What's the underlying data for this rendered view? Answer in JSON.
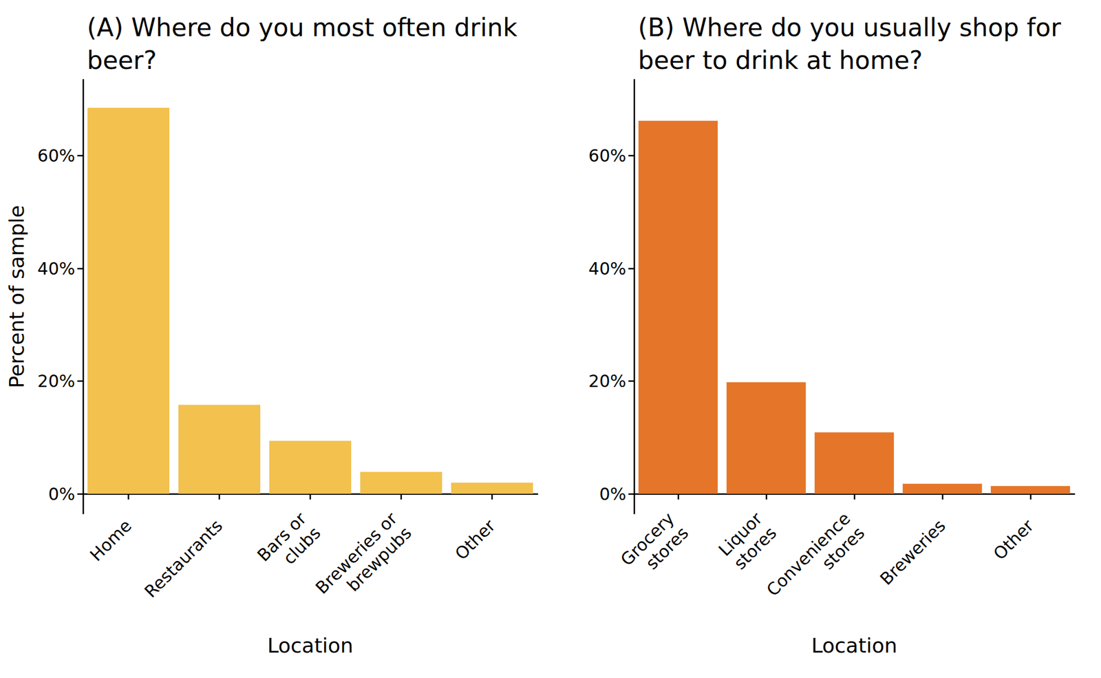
{
  "chart_data": [
    {
      "type": "bar",
      "title": "(A) Where do you most often drink beer?",
      "xlabel": "Location",
      "ylabel": "Percent of sample",
      "categories": [
        "Home",
        "Restaurants",
        "Bars or\nclubs",
        "Breweries or\nbrewpubs",
        "Other"
      ],
      "values": [
        68.5,
        15.8,
        9.4,
        3.9,
        2.0
      ],
      "color": "#f2c14e",
      "ylim": [
        -3.5,
        73.5
      ],
      "yticks": [
        {
          "value": 0,
          "label": "0%"
        },
        {
          "value": 20,
          "label": "20%"
        },
        {
          "value": 40,
          "label": "40%"
        },
        {
          "value": 60,
          "label": "60%"
        }
      ],
      "grid": false
    },
    {
      "type": "bar",
      "title": "(B) Where do you usually shop for beer to drink at home?",
      "xlabel": "Location",
      "categories": [
        "Grocery\nstores",
        "Liquor\nstores",
        "Convenience\nstores",
        "Breweries",
        "Other"
      ],
      "values": [
        66.2,
        19.8,
        10.9,
        1.8,
        1.4
      ],
      "color": "#e57528",
      "ylim": [
        -3.5,
        73.5
      ],
      "yticks": [
        {
          "value": 0,
          "label": "0%"
        },
        {
          "value": 20,
          "label": "20%"
        },
        {
          "value": 40,
          "label": "40%"
        },
        {
          "value": 60,
          "label": "60%"
        }
      ],
      "grid": false
    }
  ]
}
